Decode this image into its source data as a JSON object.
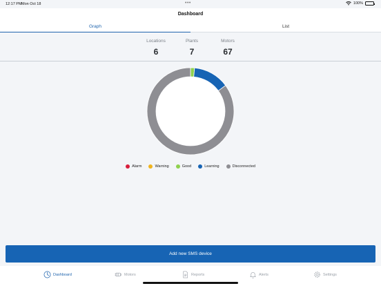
{
  "status": {
    "time": "12:17 PM",
    "date": "Mon Oct 18",
    "battery": "100%",
    "dots": "•••"
  },
  "header": {
    "title": "Dashboard"
  },
  "tabs": [
    {
      "label": "Graph",
      "active": true
    },
    {
      "label": "List",
      "active": false
    }
  ],
  "stats": [
    {
      "label": "Locations",
      "value": "6"
    },
    {
      "label": "Plants",
      "value": "7"
    },
    {
      "label": "Motors",
      "value": "67"
    }
  ],
  "chart_data": {
    "type": "pie",
    "categories": [
      "Alarm",
      "Warning",
      "Good",
      "Learning",
      "Disconnected"
    ],
    "values": [
      0,
      0,
      1,
      9,
      57
    ],
    "colors": [
      "#d81e3c",
      "#f0b41e",
      "#8fd14f",
      "#1764b4",
      "#8e8e93"
    ]
  },
  "legend": [
    {
      "label": "Alarm",
      "color": "#d81e3c"
    },
    {
      "label": "Warning",
      "color": "#f0b41e"
    },
    {
      "label": "Good",
      "color": "#8fd14f"
    },
    {
      "label": "Learning",
      "color": "#1764b4"
    },
    {
      "label": "Disconnected",
      "color": "#8e8e93"
    }
  ],
  "action": {
    "label": "Add new SMS device"
  },
  "nav": [
    {
      "label": "Dashboard",
      "icon": "dashboard-icon",
      "active": true
    },
    {
      "label": "Motors",
      "icon": "motor-icon",
      "active": false
    },
    {
      "label": "Reports",
      "icon": "report-icon",
      "active": false
    },
    {
      "label": "Alerts",
      "icon": "bell-icon",
      "active": false
    },
    {
      "label": "Settings",
      "icon": "gear-icon",
      "active": false
    }
  ]
}
